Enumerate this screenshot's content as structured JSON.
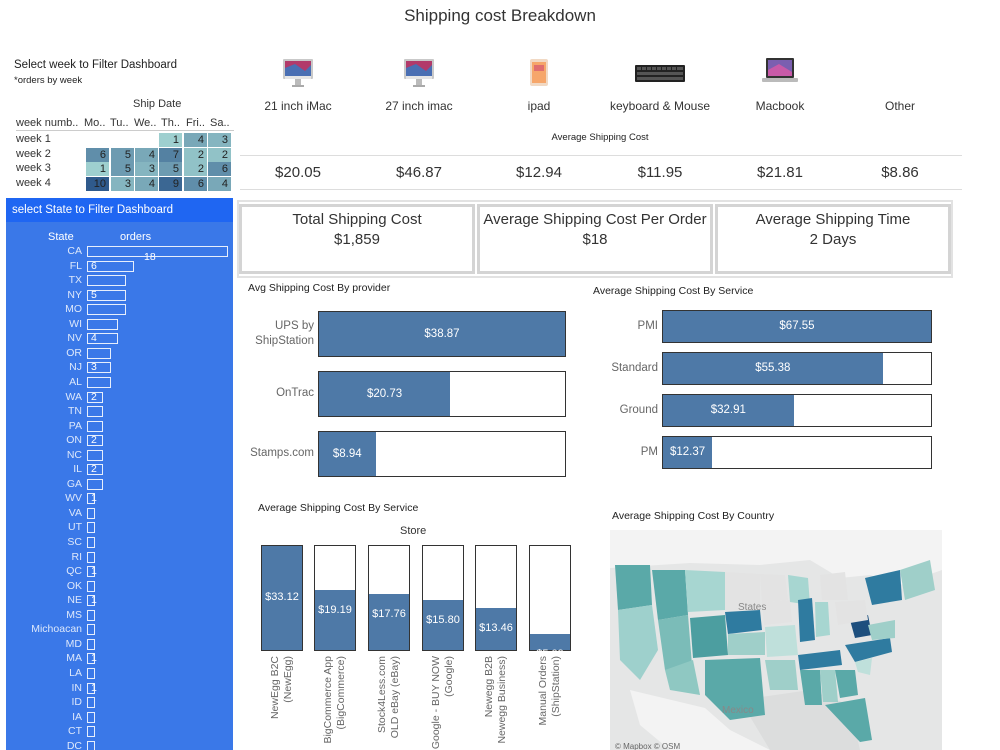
{
  "title": "Shipping cost Breakdown",
  "week_filter": {
    "label": "Select week to Filter Dashboard",
    "sublabel": "*orders by week",
    "column_group": "Ship Date",
    "headers": [
      "week numb..",
      "Mo..",
      "Tu..",
      "We..",
      "Th..",
      "Fri..",
      "Sa.."
    ],
    "rows": [
      {
        "label": "week 1",
        "values": [
          null,
          null,
          null,
          1,
          4,
          3
        ]
      },
      {
        "label": "week 2",
        "values": [
          6,
          5,
          4,
          7,
          2,
          2
        ]
      },
      {
        "label": "week 3",
        "values": [
          1,
          5,
          3,
          5,
          2,
          6
        ]
      },
      {
        "label": "week 4",
        "values": [
          10,
          3,
          4,
          9,
          6,
          4
        ]
      }
    ]
  },
  "state_filter": {
    "title": "select State to Filter  Dashboard",
    "col_state": "State",
    "col_orders": "orders",
    "rows": [
      {
        "state": "CA",
        "orders": 18,
        "label": "18"
      },
      {
        "state": "FL",
        "orders": 6,
        "label": "6"
      },
      {
        "state": "TX",
        "orders": 5,
        "label": ""
      },
      {
        "state": "NY",
        "orders": 5,
        "label": "5"
      },
      {
        "state": "MO",
        "orders": 5,
        "label": ""
      },
      {
        "state": "WI",
        "orders": 4,
        "label": ""
      },
      {
        "state": "NV",
        "orders": 4,
        "label": "4"
      },
      {
        "state": "OR",
        "orders": 3,
        "label": ""
      },
      {
        "state": "NJ",
        "orders": 3,
        "label": "3"
      },
      {
        "state": "AL",
        "orders": 3,
        "label": ""
      },
      {
        "state": "WA",
        "orders": 2,
        "label": "2"
      },
      {
        "state": "TN",
        "orders": 2,
        "label": ""
      },
      {
        "state": "PA",
        "orders": 2,
        "label": ""
      },
      {
        "state": "ON",
        "orders": 2,
        "label": "2"
      },
      {
        "state": "NC",
        "orders": 2,
        "label": ""
      },
      {
        "state": "IL",
        "orders": 2,
        "label": "2"
      },
      {
        "state": "GA",
        "orders": 2,
        "label": ""
      },
      {
        "state": "WV",
        "orders": 1,
        "label": "1"
      },
      {
        "state": "VA",
        "orders": 1,
        "label": ""
      },
      {
        "state": "UT",
        "orders": 1,
        "label": ""
      },
      {
        "state": "SC",
        "orders": 1,
        "label": ""
      },
      {
        "state": "RI",
        "orders": 1,
        "label": ""
      },
      {
        "state": "QC",
        "orders": 1,
        "label": "1"
      },
      {
        "state": "OK",
        "orders": 1,
        "label": ""
      },
      {
        "state": "NE",
        "orders": 1,
        "label": "1"
      },
      {
        "state": "MS",
        "orders": 1,
        "label": ""
      },
      {
        "state": "Michoacan",
        "orders": 1,
        "label": ""
      },
      {
        "state": "MD",
        "orders": 1,
        "label": ""
      },
      {
        "state": "MA",
        "orders": 1,
        "label": "1"
      },
      {
        "state": "LA",
        "orders": 1,
        "label": ""
      },
      {
        "state": "IN",
        "orders": 1,
        "label": "1"
      },
      {
        "state": "ID",
        "orders": 1,
        "label": ""
      },
      {
        "state": "IA",
        "orders": 1,
        "label": ""
      },
      {
        "state": "CT",
        "orders": 1,
        "label": ""
      },
      {
        "state": "DC",
        "orders": 1,
        "label": ""
      }
    ]
  },
  "products": {
    "caption": "Average Shipping Cost",
    "items": [
      {
        "name": "21 inch iMac",
        "cost": "$20.05",
        "icon": "imac-icon"
      },
      {
        "name": "27 inch imac",
        "cost": "$46.87",
        "icon": "imac-icon"
      },
      {
        "name": "ipad",
        "cost": "$12.94",
        "icon": "ipad-icon"
      },
      {
        "name": "keyboard & Mouse",
        "cost": "$11.95",
        "icon": "keyboard-icon"
      },
      {
        "name": "Macbook",
        "cost": "$21.81",
        "icon": "macbook-icon"
      },
      {
        "name": "Other",
        "cost": "$8.86",
        "icon": ""
      }
    ]
  },
  "kpis": [
    {
      "label": "Total Shipping Cost",
      "value": "$1,859"
    },
    {
      "label": "Average Shipping Cost Per Order",
      "value": "$18"
    },
    {
      "label": "Average Shipping Time",
      "value": "2 Days"
    }
  ],
  "chart_data": [
    {
      "type": "bar",
      "orientation": "horizontal",
      "title": "Avg Shipping Cost By provider",
      "categories": [
        "UPS by ShipStation",
        "OnTrac",
        "Stamps.com"
      ],
      "values": [
        38.87,
        20.73,
        8.94
      ],
      "labels": [
        "$38.87",
        "$20.73",
        "$8.94"
      ],
      "xlim": [
        0,
        38.87
      ]
    },
    {
      "type": "bar",
      "orientation": "horizontal",
      "title": "Average Shipping Cost By Service",
      "categories": [
        "PMI",
        "Standard",
        "Ground",
        "PM"
      ],
      "values": [
        67.55,
        55.38,
        32.91,
        12.37
      ],
      "labels": [
        "$67.55",
        "$55.38",
        "$32.91",
        "$12.37"
      ],
      "xlim": [
        0,
        67.55
      ]
    },
    {
      "type": "bar",
      "orientation": "vertical",
      "title": "Average Shipping Cost By Service",
      "xlabel": "Store",
      "categories": [
        "NewEgg B2C\n(NewEgg)",
        "BigCommerce App\n(BigCommerce)",
        "Stock4Less.com\nOLD eBay (eBay)",
        "Google - BUY NOW\n(Google)",
        "Newegg B2B\nNewegg Business)",
        "Manual Orders\n(ShipStation)"
      ],
      "values": [
        33.12,
        19.19,
        17.76,
        15.8,
        13.46,
        5.09
      ],
      "labels": [
        "$33.12",
        "$19.19",
        "$17.76",
        "$15.80",
        "$13.46",
        "$5.09"
      ],
      "ylim": [
        0,
        33.12
      ]
    }
  ],
  "map": {
    "title": "Average Shipping Cost By Country",
    "labels": [
      "States",
      "Mexico"
    ],
    "credit": "© Mapbox © OSM"
  },
  "colors": {
    "bar": "#4e79a7",
    "state_panel": "#3a78e8",
    "state_header": "#1f66f2"
  }
}
